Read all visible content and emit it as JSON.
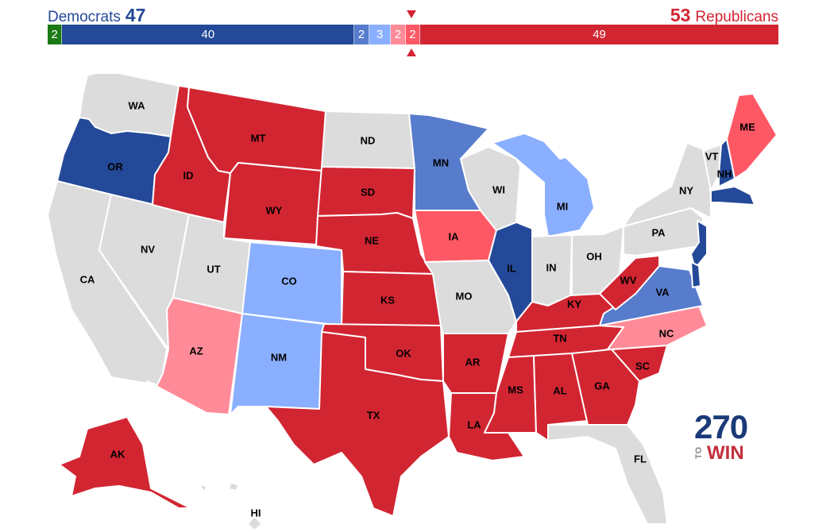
{
  "header": {
    "dem_label": "Democrats",
    "dem_total": "47",
    "rep_total": "53",
    "rep_label": "Republicans"
  },
  "seat_bar": [
    {
      "label": "2",
      "seats": 2,
      "color": "#1a7a14",
      "category": "independent"
    },
    {
      "label": "40",
      "seats": 40,
      "color": "#244999",
      "category": "safe-dem"
    },
    {
      "label": "2",
      "seats": 2,
      "color": "#577ccc",
      "category": "likely-dem"
    },
    {
      "label": "3",
      "seats": 3,
      "color": "#8aafff",
      "category": "leans-dem"
    },
    {
      "label": "2",
      "seats": 2,
      "color": "#ff8b98",
      "category": "leans-rep"
    },
    {
      "label": "2",
      "seats": 2,
      "color": "#ff5865",
      "category": "likely-rep"
    },
    {
      "label": "49",
      "seats": 49,
      "color": "#d22532",
      "category": "safe-rep"
    }
  ],
  "colors": {
    "safe-dem": "#244999",
    "likely-dem": "#577ccc",
    "leans-dem": "#8aafff",
    "leans-rep": "#ff8b98",
    "likely-rep": "#ff5865",
    "safe-rep": "#d22532",
    "no-race": "#dcdcdc"
  },
  "states": {
    "WA": "no-race",
    "OR": "safe-dem",
    "CA": "no-race",
    "NV": "no-race",
    "ID": "safe-rep",
    "MT": "safe-rep",
    "WY": "safe-rep",
    "UT": "no-race",
    "AZ": "leans-rep",
    "CO": "leans-dem",
    "NM": "leans-dem",
    "ND": "no-race",
    "SD": "safe-rep",
    "NE": "safe-rep",
    "KS": "safe-rep",
    "OK": "safe-rep",
    "TX": "safe-rep",
    "MN": "likely-dem",
    "IA": "likely-rep",
    "MO": "no-race",
    "AR": "safe-rep",
    "LA": "safe-rep",
    "WI": "no-race",
    "IL": "safe-dem",
    "MI": "leans-dem",
    "IN": "no-race",
    "OH": "no-race",
    "KY": "safe-rep",
    "TN": "safe-rep",
    "MS": "safe-rep",
    "AL": "safe-rep",
    "GA": "safe-rep",
    "FL": "no-race",
    "SC": "safe-rep",
    "NC": "leans-rep",
    "VA": "likely-dem",
    "WV": "safe-rep",
    "PA": "no-race",
    "NY": "no-race",
    "VT": "no-race",
    "NH": "safe-dem",
    "ME": "likely-rep",
    "MA": "safe-dem",
    "NJ": "safe-dem",
    "DE": "safe-dem",
    "AK": "safe-rep",
    "HI": "no-race"
  },
  "labels": {
    "WA": "WA",
    "OR": "OR",
    "CA": "CA",
    "NV": "NV",
    "ID": "ID",
    "MT": "MT",
    "WY": "WY",
    "UT": "UT",
    "AZ": "AZ",
    "CO": "CO",
    "NM": "NM",
    "ND": "ND",
    "SD": "SD",
    "NE": "NE",
    "KS": "KS",
    "OK": "OK",
    "TX": "TX",
    "MN": "MN",
    "IA": "IA",
    "MO": "MO",
    "AR": "AR",
    "LA": "LA",
    "WI": "WI",
    "IL": "IL",
    "MI": "MI",
    "IN": "IN",
    "OH": "OH",
    "KY": "KY",
    "TN": "TN",
    "MS": "MS",
    "AL": "AL",
    "GA": "GA",
    "FL": "FL",
    "SC": "SC",
    "NC": "NC",
    "VA": "VA",
    "WV": "WV",
    "PA": "PA",
    "NY": "NY",
    "VT": "VT",
    "NH": "NH",
    "ME": "ME",
    "AK": "AK",
    "HI": "HI"
  },
  "logo": {
    "number": "270",
    "to": "TO",
    "win": "WIN"
  }
}
